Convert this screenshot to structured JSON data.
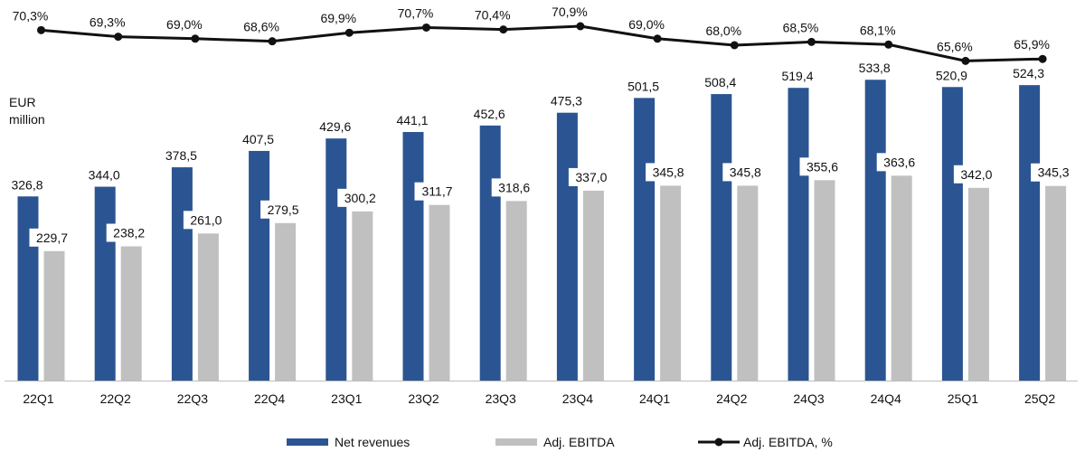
{
  "chart_data": {
    "type": "bar",
    "unit_label": [
      "EUR",
      "million"
    ],
    "categories": [
      "22Q1",
      "22Q2",
      "22Q3",
      "22Q4",
      "23Q1",
      "23Q2",
      "23Q3",
      "23Q4",
      "24Q1",
      "24Q2",
      "24Q3",
      "24Q4",
      "25Q1",
      "25Q2"
    ],
    "series": [
      {
        "name": "Net revenues",
        "kind": "bar",
        "color": "#2b5592",
        "values": [
          326.8,
          344.0,
          378.5,
          407.5,
          429.6,
          441.1,
          452.6,
          475.3,
          501.5,
          508.4,
          519.4,
          533.8,
          520.9,
          524.3
        ],
        "labels": [
          "326,8",
          "344,0",
          "378,5",
          "407,5",
          "429,6",
          "441,1",
          "452,6",
          "475,3",
          "501,5",
          "508,4",
          "519,4",
          "533,8",
          "520,9",
          "524,3"
        ]
      },
      {
        "name": "Adj. EBITDA",
        "kind": "bar",
        "color": "#c0c0c0",
        "values": [
          229.7,
          238.2,
          261.0,
          279.5,
          300.2,
          311.7,
          318.6,
          337.0,
          345.8,
          345.8,
          355.6,
          363.6,
          342.0,
          345.3
        ],
        "labels": [
          "229,7",
          "238,2",
          "261,0",
          "279,5",
          "300,2",
          "311,7",
          "318,6",
          "337,0",
          "345,8",
          "345,8",
          "355,6",
          "363,6",
          "342,0",
          "345,3"
        ]
      },
      {
        "name": "Adj. EBITDA, %",
        "kind": "line",
        "color": "#111111",
        "values": [
          70.3,
          69.3,
          69.0,
          68.6,
          69.9,
          70.7,
          70.4,
          70.9,
          69.0,
          68.0,
          68.5,
          68.1,
          65.6,
          65.9
        ],
        "labels": [
          "70,3%",
          "69,3%",
          "69,0%",
          "68,6%",
          "69,9%",
          "70,7%",
          "70,4%",
          "70,9%",
          "69,0%",
          "68,0%",
          "68,5%",
          "68,1%",
          "65,6%",
          "65,9%"
        ]
      }
    ],
    "bar_axis_range": [
      0,
      620
    ],
    "line_axis_range": [
      64,
      72
    ],
    "grid": false,
    "legend_position": "bottom"
  }
}
